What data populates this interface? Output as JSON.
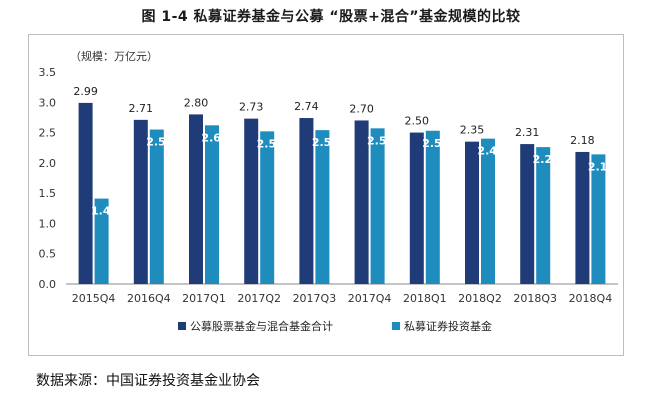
{
  "title": "图 1-4  私募证券基金与公募 “股票+混合”基金规模的比较",
  "source": "数据来源：中国证券投资基金业协会",
  "chart_data": {
    "type": "bar",
    "unit_label": "（规模：万亿元）",
    "categories": [
      "2015Q4",
      "2016Q4",
      "2017Q1",
      "2017Q2",
      "2017Q3",
      "2017Q4",
      "2018Q1",
      "2018Q2",
      "2018Q3",
      "2018Q4"
    ],
    "series": [
      {
        "name": "公募股票基金与混合基金合计",
        "color": "#1f3c78",
        "values": [
          2.99,
          2.71,
          2.8,
          2.73,
          2.74,
          2.7,
          2.5,
          2.35,
          2.31,
          2.18
        ]
      },
      {
        "name": "私募证券投资基金",
        "color": "#1e8cbd",
        "values": [
          1.41,
          2.55,
          2.62,
          2.52,
          2.54,
          2.57,
          2.53,
          2.4,
          2.26,
          2.14
        ]
      }
    ],
    "data_labels": [
      [
        "2.99",
        "2.71",
        "2.80",
        "2.73",
        "2.74",
        "2.70",
        "2.50",
        "2.35",
        "2.31",
        "2.18"
      ],
      [
        "1.41",
        "2.55",
        "2.62",
        "2.52",
        "2.54",
        "2.57",
        "2.53",
        "2.40",
        "2.26",
        "2.14"
      ]
    ],
    "yticks": [
      "0.0",
      "0.5",
      "1.0",
      "1.5",
      "2.0",
      "2.5",
      "3.0",
      "3.5"
    ],
    "ylim": [
      0,
      3.5
    ],
    "grid": false,
    "legend": "bottom"
  }
}
